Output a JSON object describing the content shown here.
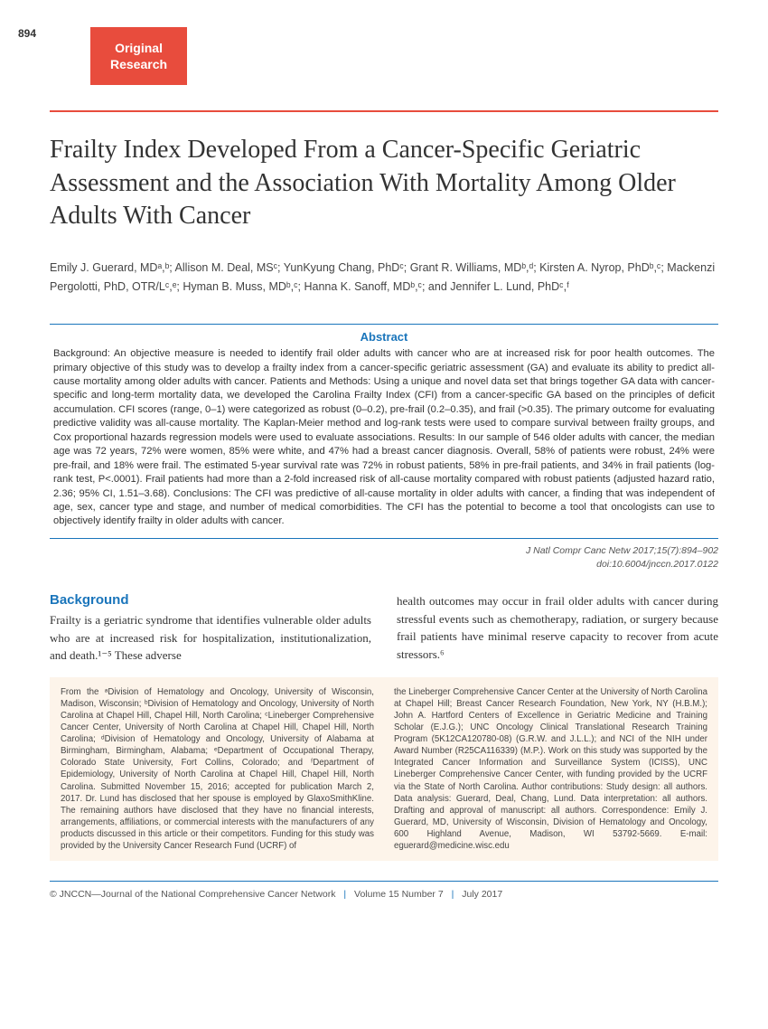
{
  "page_number": "894",
  "badge": {
    "line1": "Original",
    "line2": "Research"
  },
  "title": "Frailty Index Developed From a Cancer-Specific Geriatric Assessment and the Association With Mortality Among Older Adults With Cancer",
  "authors_html": "Emily J. Guerard, MDᵃ,ᵇ; Allison M. Deal, MSᶜ; YunKyung Chang, PhDᶜ; Grant R. Williams, MDᵇ,ᵈ; Kirsten A. Nyrop, PhDᵇ,ᶜ; Mackenzi Pergolotti, PhD, OTR/Lᶜ,ᵉ; Hyman B. Muss, MDᵇ,ᶜ; Hanna K. Sanoff, MDᵇ,ᶜ; and Jennifer L. Lund, PhDᶜ,ᶠ",
  "abstract": {
    "heading": "Abstract",
    "text": "Background: An objective measure is needed to identify frail older adults with cancer who are at increased risk for poor health outcomes. The primary objective of this study was to develop a frailty index from a cancer-specific geriatric assessment (GA) and evaluate its ability to predict all-cause mortality among older adults with cancer. Patients and Methods: Using a unique and novel data set that brings together GA data with cancer-specific and long-term mortality data, we developed the Carolina Frailty Index (CFI) from a cancer-specific GA based on the principles of deficit accumulation. CFI scores (range, 0–1) were categorized as robust (0–0.2), pre-frail (0.2–0.35), and frail (>0.35). The primary outcome for evaluating predictive validity was all-cause mortality. The Kaplan-Meier method and log-rank tests were used to compare survival between frailty groups, and Cox proportional hazards regression models were used to evaluate associations. Results: In our sample of 546 older adults with cancer, the median age was 72 years, 72% were women, 85% were white, and 47% had a breast cancer diagnosis. Overall, 58% of patients were robust, 24% were pre-frail, and 18% were frail. The estimated 5-year survival rate was 72% in robust patients, 58% in pre-frail patients, and 34% in frail patients (log-rank test, P<.0001). Frail patients had more than a 2-fold increased risk of all-cause mortality compared with robust patients (adjusted hazard ratio, 2.36; 95% CI, 1.51–3.68). Conclusions: The CFI was predictive of all-cause mortality in older adults with cancer, a finding that was independent of age, sex, cancer type and stage, and number of medical comorbidities. The CFI has the potential to become a tool that oncologists can use to objectively identify frailty in older adults with cancer."
  },
  "citation": {
    "line1": "J Natl Compr Canc Netw 2017;15(7):894–902",
    "line2": "doi:10.6004/jnccn.2017.0122"
  },
  "background": {
    "heading": "Background",
    "col1": "Frailty is a geriatric syndrome that identifies vulnerable older adults who are at increased risk for hospitalization, institutionalization, and death.¹⁻⁵ These adverse",
    "col2": "health outcomes may occur in frail older adults with cancer during stressful events such as chemotherapy, radiation, or surgery because frail patients have minimal reserve capacity to recover from acute stressors.⁶"
  },
  "affiliations": {
    "col1": "From the ᵃDivision of Hematology and Oncology, University of Wisconsin, Madison, Wisconsin; ᵇDivision of Hematology and Oncology, University of North Carolina at Chapel Hill, Chapel Hill, North Carolina; ᶜLineberger Comprehensive Cancer Center, University of North Carolina at Chapel Hill, Chapel Hill, North Carolina; ᵈDivision of Hematology and Oncology, University of Alabama at Birmingham, Birmingham, Alabama; ᵉDepartment of Occupational Therapy, Colorado State University, Fort Collins, Colorado; and ᶠDepartment of Epidemiology, University of North Carolina at Chapel Hill, Chapel Hill, North Carolina.\nSubmitted November 15, 2016; accepted for publication March 2, 2017.\nDr. Lund has disclosed that her spouse is employed by GlaxoSmithKline. The remaining authors have disclosed that they have no financial interests, arrangements, affiliations, or commercial interests with the manufacturers of any products discussed in this article or their competitors. Funding for this study was provided by the University Cancer Research Fund (UCRF) of",
    "col2": "the Lineberger Comprehensive Cancer Center at the University of North Carolina at Chapel Hill; Breast Cancer Research Foundation, New York, NY (H.B.M.); John A. Hartford Centers of Excellence in Geriatric Medicine and Training Scholar (E.J.G.); UNC Oncology Clinical Translational Research Training Program (5K12CA120780-08) (G.R.W. and J.L.L.); and NCI of the NIH under Award Number (R25CA116339) (M.P.). Work on this study was supported by the Integrated Cancer Information and Surveillance System (ICISS), UNC Lineberger Comprehensive Cancer Center, with funding provided by the UCRF via the State of North Carolina.\nAuthor contributions: Study design: all authors. Data analysis: Guerard, Deal, Chang, Lund. Data interpretation: all authors. Drafting and approval of manuscript: all authors.\nCorrespondence: Emily J. Guerard, MD, University of Wisconsin, Division of Hematology and Oncology, 600 Highland Avenue, Madison, WI 53792-5669. E-mail: eguerard@medicine.wisc.edu"
  },
  "footer": {
    "copyright": "© JNCCN—Journal of the National Comprehensive Cancer Network",
    "volume": "Volume 15   Number 7",
    "date": "July 2017"
  },
  "colors": {
    "accent": "#e84c3d",
    "blue": "#1a75bb",
    "affil_bg": "#fdf4ea"
  }
}
